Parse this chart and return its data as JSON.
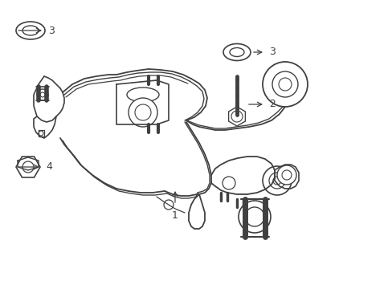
{
  "background_color": "#ffffff",
  "line_color": "#404040",
  "label_color": "#000000",
  "fig_width": 4.89,
  "fig_height": 3.6,
  "dpi": 100,
  "xlim": [
    0,
    489
  ],
  "ylim": [
    0,
    360
  ]
}
